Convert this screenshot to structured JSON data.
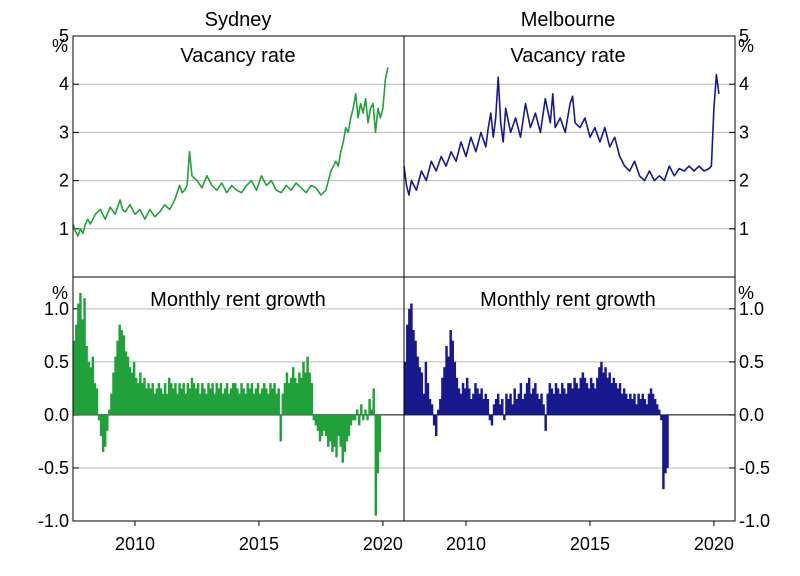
{
  "chart_data": [
    {
      "type": "line",
      "column_title": "Sydney",
      "title": "Vacancy rate",
      "unit": "%",
      "color": "#21a13a",
      "ylim": [
        0,
        5
      ],
      "yticks": [
        "1",
        "2",
        "3",
        "4",
        "5"
      ],
      "xticks": [
        "2010",
        "2015",
        "2020"
      ],
      "series": [
        {
          "x": [
            2007.5,
            2007.6,
            2007.7,
            2007.8,
            2007.9,
            2008.0,
            2008.1,
            2008.2,
            2008.4,
            2008.6,
            2008.8,
            2009.0,
            2009.2,
            2009.4,
            2009.5,
            2009.6,
            2009.8,
            2010.0,
            2010.2,
            2010.4,
            2010.6,
            2010.8,
            2011.0,
            2011.2,
            2011.4,
            2011.6,
            2011.8,
            2011.9,
            2012.0,
            2012.1,
            2012.2,
            2012.3,
            2012.5,
            2012.7,
            2012.9,
            2013.1,
            2013.3,
            2013.5,
            2013.7,
            2013.9,
            2014.1,
            2014.3,
            2014.5,
            2014.7,
            2014.9,
            2015.1,
            2015.3,
            2015.5,
            2015.7,
            2015.9,
            2016.1,
            2016.3,
            2016.5,
            2016.7,
            2016.9,
            2017.1,
            2017.3,
            2017.5,
            2017.7,
            2017.9,
            2018.1,
            2018.2,
            2018.3,
            2018.4,
            2018.5,
            2018.6,
            2018.7,
            2018.8,
            2018.9,
            2019.0,
            2019.1,
            2019.2,
            2019.3,
            2019.4,
            2019.5,
            2019.6,
            2019.7,
            2019.8,
            2019.9,
            2020.0,
            2020.1,
            2020.2
          ],
          "values": [
            1.1,
            0.95,
            0.85,
            1.0,
            0.9,
            1.1,
            1.2,
            1.1,
            1.3,
            1.4,
            1.2,
            1.45,
            1.3,
            1.6,
            1.4,
            1.35,
            1.5,
            1.3,
            1.4,
            1.2,
            1.4,
            1.25,
            1.35,
            1.5,
            1.4,
            1.6,
            1.9,
            1.75,
            1.8,
            1.9,
            2.6,
            2.1,
            2.0,
            1.85,
            2.1,
            1.9,
            1.8,
            1.95,
            1.75,
            1.9,
            1.8,
            1.75,
            1.9,
            2.0,
            1.8,
            2.1,
            1.9,
            2.0,
            1.8,
            1.75,
            1.9,
            1.8,
            1.95,
            1.85,
            1.75,
            1.9,
            1.85,
            1.7,
            1.8,
            2.2,
            2.4,
            2.3,
            2.6,
            2.8,
            3.1,
            3.0,
            3.3,
            3.5,
            3.8,
            3.3,
            3.6,
            3.4,
            3.7,
            3.2,
            3.5,
            3.6,
            3.0,
            3.5,
            3.3,
            3.5,
            4.1,
            4.35
          ]
        }
      ]
    },
    {
      "type": "line",
      "column_title": "Melbourne",
      "title": "Vacancy rate",
      "unit": "%",
      "color": "#17198c",
      "ylim": [
        0,
        5
      ],
      "yticks": [
        "1",
        "2",
        "3",
        "4",
        "5"
      ],
      "xticks": [
        "2010",
        "2015",
        "2020"
      ],
      "series": [
        {
          "x": [
            2007.5,
            2007.6,
            2007.7,
            2007.8,
            2008.0,
            2008.2,
            2008.4,
            2008.6,
            2008.8,
            2009.0,
            2009.2,
            2009.4,
            2009.6,
            2009.8,
            2010.0,
            2010.2,
            2010.4,
            2010.6,
            2010.8,
            2010.9,
            2011.0,
            2011.1,
            2011.2,
            2011.3,
            2011.4,
            2011.5,
            2011.6,
            2011.8,
            2012.0,
            2012.2,
            2012.4,
            2012.6,
            2012.8,
            2013.0,
            2013.2,
            2013.4,
            2013.5,
            2013.6,
            2013.8,
            2014.0,
            2014.2,
            2014.3,
            2014.4,
            2014.6,
            2014.8,
            2015.0,
            2015.2,
            2015.4,
            2015.6,
            2015.8,
            2016.0,
            2016.2,
            2016.4,
            2016.6,
            2016.8,
            2017.0,
            2017.2,
            2017.4,
            2017.6,
            2017.8,
            2018.0,
            2018.2,
            2018.4,
            2018.6,
            2018.8,
            2019.0,
            2019.2,
            2019.4,
            2019.6,
            2019.8,
            2019.9,
            2020.0,
            2020.1,
            2020.2
          ],
          "values": [
            2.3,
            1.9,
            1.7,
            2.0,
            1.8,
            2.2,
            2.0,
            2.4,
            2.2,
            2.5,
            2.3,
            2.6,
            2.4,
            2.8,
            2.5,
            2.9,
            2.6,
            3.0,
            2.7,
            3.1,
            3.4,
            2.9,
            3.3,
            4.15,
            3.2,
            2.8,
            3.5,
            3.0,
            3.3,
            2.9,
            3.6,
            3.1,
            3.4,
            3.0,
            3.7,
            3.2,
            3.8,
            3.1,
            3.3,
            3.0,
            3.6,
            3.75,
            3.2,
            3.1,
            3.3,
            2.9,
            3.1,
            2.8,
            3.1,
            2.7,
            2.9,
            2.5,
            2.3,
            2.2,
            2.4,
            2.1,
            2.0,
            2.2,
            2.0,
            2.1,
            2.0,
            2.3,
            2.1,
            2.25,
            2.2,
            2.3,
            2.2,
            2.3,
            2.2,
            2.25,
            2.3,
            3.5,
            4.2,
            3.8
          ]
        }
      ]
    },
    {
      "type": "bar",
      "title": "Monthly rent growth",
      "unit": "%",
      "color": "#21a13a",
      "ylim": [
        -1.0,
        1.3
      ],
      "yticks": [
        "-1.0",
        "-0.5",
        "0.0",
        "0.5",
        "1.0"
      ],
      "xticks": [
        "2010",
        "2015",
        "2020"
      ],
      "x_start": 2007.5,
      "x_step": 0.0833,
      "values": [
        0.7,
        0.85,
        1.05,
        1.15,
        0.9,
        1.1,
        0.65,
        0.5,
        0.45,
        0.55,
        0.3,
        0.25,
        -0.05,
        -0.2,
        -0.35,
        -0.3,
        -0.15,
        0.05,
        0.2,
        0.4,
        0.55,
        0.7,
        0.85,
        0.8,
        0.75,
        0.6,
        0.55,
        0.45,
        0.4,
        0.5,
        0.35,
        0.3,
        0.4,
        0.3,
        0.35,
        0.25,
        0.3,
        0.25,
        0.3,
        0.2,
        0.25,
        0.3,
        0.25,
        0.2,
        0.3,
        0.2,
        0.35,
        0.3,
        0.25,
        0.3,
        0.2,
        0.3,
        0.25,
        0.3,
        0.2,
        0.3,
        0.25,
        0.35,
        0.3,
        0.25,
        0.3,
        0.2,
        0.3,
        0.25,
        0.2,
        0.3,
        0.25,
        0.3,
        0.2,
        0.3,
        0.25,
        0.3,
        0.2,
        0.25,
        0.3,
        0.2,
        0.25,
        0.3,
        0.3,
        0.25,
        0.2,
        0.3,
        0.25,
        0.2,
        0.3,
        0.25,
        0.3,
        0.2,
        0.25,
        0.3,
        0.2,
        0.25,
        0.3,
        0.25,
        0.2,
        0.3,
        0.25,
        0.3,
        0.2,
        0.25,
        -0.25,
        0.2,
        0.3,
        0.4,
        0.3,
        0.35,
        0.45,
        0.35,
        0.3,
        0.4,
        0.35,
        0.5,
        0.4,
        0.55,
        0.4,
        0.3,
        -0.05,
        -0.1,
        -0.15,
        -0.25,
        -0.2,
        -0.15,
        -0.2,
        -0.3,
        -0.25,
        -0.35,
        -0.3,
        -0.4,
        -0.2,
        -0.3,
        -0.45,
        -0.35,
        -0.25,
        -0.2,
        -0.1,
        -0.05,
        -0.05,
        0.05,
        -0.1,
        0.1,
        -0.05,
        0.05,
        -0.05,
        0.15,
        0.05,
        0.25,
        -0.95,
        -0.55,
        -0.35
      ]
    },
    {
      "type": "bar",
      "title": "Monthly rent growth",
      "unit": "%",
      "color": "#17198c",
      "ylim": [
        -1.0,
        1.3
      ],
      "yticks": [
        "-1.0",
        "-0.5",
        "0.0",
        "0.5",
        "1.0"
      ],
      "xticks": [
        "2010",
        "2015",
        "2020"
      ],
      "x_start": 2007.5,
      "x_step": 0.0833,
      "values": [
        0.5,
        0.85,
        1.0,
        1.05,
        0.8,
        0.7,
        0.55,
        0.45,
        0.4,
        0.2,
        0.5,
        0.3,
        0.15,
        0.1,
        -0.1,
        -0.2,
        0.05,
        0.15,
        0.35,
        0.45,
        0.65,
        0.55,
        0.8,
        0.7,
        0.5,
        0.35,
        0.25,
        0.2,
        0.3,
        0.25,
        0.35,
        0.25,
        0.15,
        0.2,
        0.3,
        0.25,
        0.2,
        0.25,
        0.15,
        0.2,
        0.15,
        -0.05,
        -0.1,
        0.1,
        0.15,
        0.2,
        0.1,
        0.15,
        -0.05,
        0.2,
        0.15,
        0.2,
        0.1,
        0.25,
        0.15,
        0.2,
        0.3,
        0.15,
        0.2,
        0.3,
        0.35,
        0.2,
        0.25,
        0.3,
        0.2,
        0.15,
        0.2,
        0.1,
        -0.15,
        0.2,
        0.3,
        0.25,
        0.2,
        0.3,
        0.25,
        0.2,
        0.3,
        0.25,
        0.2,
        0.3,
        0.3,
        0.25,
        0.35,
        0.3,
        0.25,
        0.35,
        0.4,
        0.35,
        0.3,
        0.25,
        0.35,
        0.3,
        0.25,
        0.35,
        0.45,
        0.5,
        0.4,
        0.45,
        0.35,
        0.4,
        0.3,
        0.35,
        0.3,
        0.25,
        0.3,
        0.2,
        0.25,
        0.2,
        0.15,
        0.2,
        0.15,
        0.2,
        0.1,
        0.2,
        0.15,
        0.2,
        0.15,
        0.1,
        0.2,
        0.25,
        0.2,
        0.15,
        0.1,
        0.05,
        -0.05,
        -0.7,
        -0.55,
        -0.5
      ]
    }
  ]
}
